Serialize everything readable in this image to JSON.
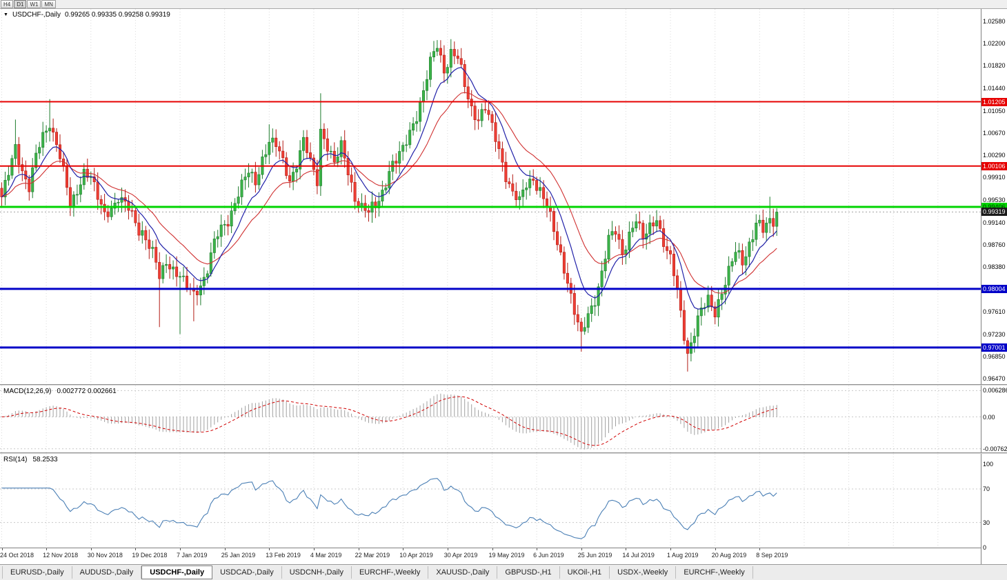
{
  "toolbar": {
    "timeframes": [
      "H4",
      "D1",
      "W1",
      "MN"
    ],
    "active": "D1"
  },
  "chart_header": {
    "symbol_label": "USDCHF-,Daily",
    "ohlc_text": "0.99265 0.99335 0.99258 0.99319"
  },
  "tabs": {
    "items": [
      {
        "label": "EURUSD-,Daily",
        "active": false
      },
      {
        "label": "AUDUSD-,Daily",
        "active": false
      },
      {
        "label": "USDCHF-,Daily",
        "active": true
      },
      {
        "label": "USDCAD-,Daily",
        "active": false
      },
      {
        "label": "USDCNH-,Daily",
        "active": false
      },
      {
        "label": "EURCHF-,Weekly",
        "active": false
      },
      {
        "label": "XAUUSD-,Daily",
        "active": false
      },
      {
        "label": "GBPUSD-,H1",
        "active": false
      },
      {
        "label": "UKOil-,H1",
        "active": false
      },
      {
        "label": "USDX-,Weekly",
        "active": false
      },
      {
        "label": "EURCHF-,Weekly",
        "active": false
      }
    ]
  },
  "colors": {
    "bull": "#3cb349",
    "bull_border": "#1d7c2c",
    "bear": "#ef3f35",
    "bear_border": "#b21b14",
    "ma_blue": "#2020a8",
    "ma_red": "#d03030",
    "grid": "#d9d9d9",
    "current_price_line": "#a0a0a0",
    "current_price_badge": "#1a1a1a",
    "macd_hist": "#a0a0a0",
    "macd_signal": "#d00000",
    "rsi_line": "#4a7fb5",
    "level_dots": "#c8c8c8"
  },
  "chart_data": {
    "type": "candlestick",
    "symbol": "USDCHF",
    "timeframe": "Daily",
    "open": "0.99265",
    "high": "0.99335",
    "low": "0.99258",
    "close": "0.99319",
    "x_labels": [
      "24 Oct 2018",
      "12 Nov 2018",
      "30 Nov 2018",
      "19 Dec 2018",
      "7 Jan 2019",
      "25 Jan 2019",
      "13 Feb 2019",
      "4 Mar 2019",
      "22 Mar 2019",
      "10 Apr 2019",
      "30 Apr 2019",
      "19 May 2019",
      "6 Jun 2019",
      "25 Jun 2019",
      "14 Jul 2019",
      "1 Aug 2019",
      "20 Aug 2019",
      "8 Sep 2019"
    ],
    "candles_per_label": 13,
    "total_slots": 286,
    "candles_count": 227,
    "price_axis": {
      "labels": [
        "1.02580",
        "1.02200",
        "1.01820",
        "1.01440",
        "1.01050",
        "1.00670",
        "1.00290",
        "0.99910",
        "0.99530",
        "0.99140",
        "0.98760",
        "0.98380",
        "0.97610",
        "0.97230",
        "0.96850",
        "0.96470"
      ],
      "max": 1.02792,
      "min": 0.96375
    },
    "hlines": [
      {
        "value": 1.01205,
        "label": "1.01205",
        "color": "#e60000",
        "text": "#ffffff",
        "width": 2
      },
      {
        "value": 1.00106,
        "label": "1.00106",
        "color": "#e60000",
        "text": "#ffffff",
        "width": 2
      },
      {
        "value": 0.99406,
        "label": "0.99406",
        "color": "#00d400",
        "text": "#003300",
        "width": 3
      },
      {
        "value": 0.98004,
        "label": "0.98004",
        "color": "#0202c8",
        "text": "#ffffff",
        "width": 3
      },
      {
        "value": 0.97001,
        "label": "0.97001",
        "color": "#0202c8",
        "text": "#ffffff",
        "width": 3
      }
    ],
    "current_price": {
      "value": 0.99319,
      "label": "0.99319"
    },
    "anchors": [
      [
        0,
        0.995
      ],
      [
        2,
        1.0
      ],
      [
        4,
        1.0045
      ],
      [
        6,
        1.0005
      ],
      [
        8,
        0.9975
      ],
      [
        10,
        1.002
      ],
      [
        12,
        1.006
      ],
      [
        14,
        1.0095
      ],
      [
        16,
        1.005
      ],
      [
        18,
        0.999
      ],
      [
        20,
        0.9945
      ],
      [
        22,
        0.9975
      ],
      [
        24,
        1.0
      ],
      [
        26,
        0.999
      ],
      [
        28,
        0.9955
      ],
      [
        30,
        0.9925
      ],
      [
        32,
        0.9945
      ],
      [
        34,
        0.996
      ],
      [
        36,
        0.9935
      ],
      [
        38,
        0.9925
      ],
      [
        41,
        0.9905
      ],
      [
        43,
        0.987
      ],
      [
        45,
        0.984
      ],
      [
        46,
        0.982
      ],
      [
        48,
        0.985
      ],
      [
        50,
        0.9835
      ],
      [
        52,
        0.9825
      ],
      [
        54,
        0.98
      ],
      [
        56,
        0.9785
      ],
      [
        58,
        0.9815
      ],
      [
        60,
        0.984
      ],
      [
        62,
        0.987
      ],
      [
        64,
        0.99
      ],
      [
        66,
        0.9925
      ],
      [
        68,
        0.995
      ],
      [
        70,
        0.9975
      ],
      [
        72,
        1.0
      ],
      [
        74,
        0.998
      ],
      [
        76,
        1.0025
      ],
      [
        78,
        1.006
      ],
      [
        80,
        1.004
      ],
      [
        82,
        1.001
      ],
      [
        84,
        0.9995
      ],
      [
        86,
        1.002
      ],
      [
        88,
        1.0045
      ],
      [
        90,
        1.0015
      ],
      [
        92,
        0.999
      ],
      [
        93,
        1.0075
      ],
      [
        95,
        1.0045
      ],
      [
        97,
        1.0015
      ],
      [
        99,
        1.004
      ],
      [
        101,
        1.0
      ],
      [
        103,
        0.9965
      ],
      [
        105,
        0.994
      ],
      [
        107,
        0.992
      ],
      [
        109,
        0.9945
      ],
      [
        111,
        0.9975
      ],
      [
        113,
        1.0
      ],
      [
        115,
        1.0015
      ],
      [
        117,
        1.004
      ],
      [
        119,
        1.007
      ],
      [
        121,
        1.01
      ],
      [
        123,
        1.014
      ],
      [
        125,
        1.018
      ],
      [
        127,
        1.0215
      ],
      [
        129,
        1.0185
      ],
      [
        131,
        1.0205
      ],
      [
        133,
        1.0185
      ],
      [
        135,
        1.015
      ],
      [
        137,
        1.0115
      ],
      [
        139,
        1.009
      ],
      [
        141,
        1.011
      ],
      [
        143,
        1.0075
      ],
      [
        145,
        1.0035
      ],
      [
        147,
        1.0
      ],
      [
        149,
        0.997
      ],
      [
        151,
        0.994
      ],
      [
        153,
        0.9975
      ],
      [
        155,
        1.0
      ],
      [
        157,
        0.997
      ],
      [
        159,
        0.9935
      ],
      [
        161,
        0.99
      ],
      [
        163,
        0.986
      ],
      [
        165,
        0.9815
      ],
      [
        167,
        0.9765
      ],
      [
        169,
        0.9715
      ],
      [
        171,
        0.975
      ],
      [
        173,
        0.979
      ],
      [
        175,
        0.9835
      ],
      [
        177,
        0.9875
      ],
      [
        179,
        0.9895
      ],
      [
        181,
        0.987
      ],
      [
        183,
        0.9895
      ],
      [
        185,
        0.9915
      ],
      [
        187,
        0.9885
      ],
      [
        189,
        0.9905
      ],
      [
        191,
        0.9925
      ],
      [
        193,
        0.9885
      ],
      [
        195,
        0.9845
      ],
      [
        197,
        0.979
      ],
      [
        199,
        0.973
      ],
      [
        200,
        0.97
      ],
      [
        202,
        0.9725
      ],
      [
        204,
        0.9755
      ],
      [
        206,
        0.9785
      ],
      [
        208,
        0.9765
      ],
      [
        210,
        0.9795
      ],
      [
        212,
        0.983
      ],
      [
        214,
        0.986
      ],
      [
        216,
        0.9845
      ],
      [
        218,
        0.9885
      ],
      [
        220,
        0.9915
      ],
      [
        222,
        0.989
      ],
      [
        224,
        0.9915
      ],
      [
        226,
        0.99319
      ]
    ],
    "wicks": [
      {
        "i": 4,
        "h": 1.009
      },
      {
        "i": 14,
        "h": 1.0125
      },
      {
        "i": 46,
        "l": 0.9735
      },
      {
        "i": 52,
        "l": 0.9723
      },
      {
        "i": 56,
        "l": 0.9745
      },
      {
        "i": 78,
        "h": 1.0082
      },
      {
        "i": 93,
        "h": 1.0135
      },
      {
        "i": 127,
        "h": 1.0226
      },
      {
        "i": 131,
        "h": 1.022
      },
      {
        "i": 169,
        "l": 0.9693
      },
      {
        "i": 200,
        "l": 0.9659
      },
      {
        "i": 224,
        "h": 0.9958
      }
    ],
    "ma": {
      "fast_period": 10,
      "slow_period": 22
    },
    "macd": {
      "label": "MACD(12,26,9)",
      "values_text": "0.002772 0.002661",
      "fast": 12,
      "slow": 26,
      "signal": 9,
      "axis": [
        {
          "label": "0.006286",
          "value": 0.006286
        },
        {
          "label": "0.00",
          "value": 0
        },
        {
          "label": "-0.00762",
          "value": -0.00762
        }
      ],
      "scale": {
        "max": 0.0075,
        "min": -0.0085
      }
    },
    "rsi": {
      "label": "RSI(14)",
      "value_text": "58.2533",
      "period": 14,
      "axis": [
        {
          "label": "100",
          "value": 100
        },
        {
          "label": "70",
          "value": 70
        },
        {
          "label": "30",
          "value": 30
        },
        {
          "label": "0",
          "value": 0
        }
      ],
      "levels": [
        70,
        30
      ],
      "scale": {
        "max": 112,
        "min": 0
      }
    }
  }
}
